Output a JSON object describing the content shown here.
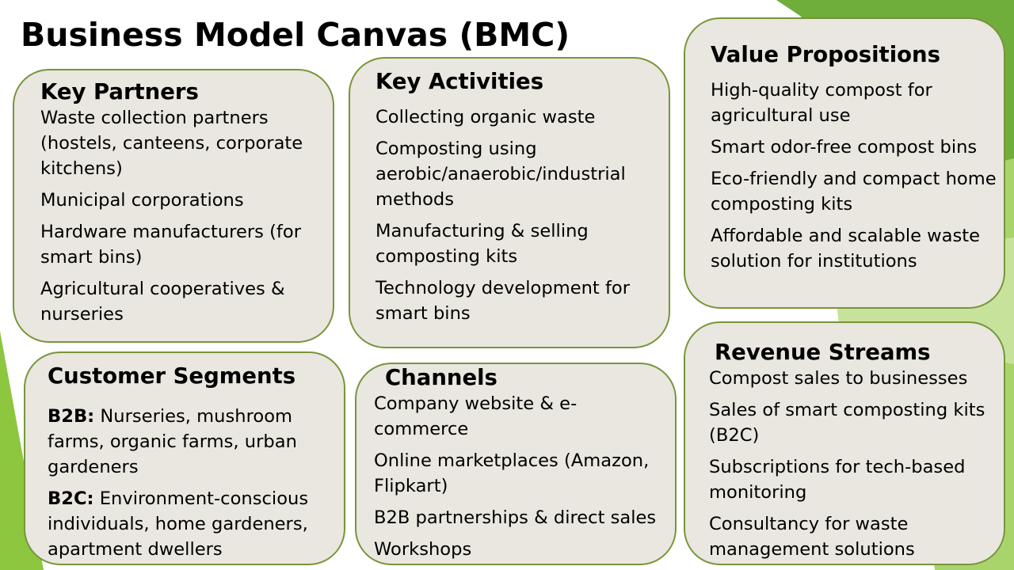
{
  "slide": {
    "title": "Business Model Canvas (BMC)"
  },
  "theme": {
    "box_fill": "#e9e7df",
    "box_border": "#77953a",
    "accent_green": "#8dc63f"
  },
  "key_partners": {
    "heading": "Key Partners",
    "items": [
      "Waste collection partners (hostels, canteens, corporate kitchens)",
      "Municipal corporations",
      "Hardware manufacturers (for smart bins)",
      "Agricultural cooperatives & nurseries"
    ]
  },
  "key_activities": {
    "heading": "Key Activities",
    "items": [
      "Collecting organic waste",
      "Composting using aerobic/anaerobic/industrial methods",
      "Manufacturing & selling composting kits",
      "Technology development for smart bins"
    ]
  },
  "value_propositions": {
    "heading": "Value Propositions",
    "items": [
      "High-quality compost for agricultural use",
      "Smart odor-free compost bins",
      "Eco-friendly and compact home composting kits",
      "Affordable and scalable waste solution for institutions"
    ]
  },
  "customer_segments": {
    "heading": "Customer Segments",
    "items": [
      {
        "label": "B2B:",
        "text": " Nurseries, mushroom farms, organic farms, urban gardeners"
      },
      {
        "label": "B2C:",
        "text": " Environment-conscious individuals, home gardeners, apartment dwellers"
      }
    ]
  },
  "channels": {
    "heading": "Channels",
    "items": [
      "Company website & e-commerce",
      "Online marketplaces (Amazon, Flipkart)",
      "B2B partnerships & direct sales",
      "Workshops"
    ]
  },
  "revenue_streams": {
    "heading": "Revenue Streams",
    "items": [
      "Compost sales to businesses",
      "Sales of smart composting kits (B2C)",
      "Subscriptions for tech-based monitoring",
      "Consultancy for waste management solutions"
    ]
  }
}
